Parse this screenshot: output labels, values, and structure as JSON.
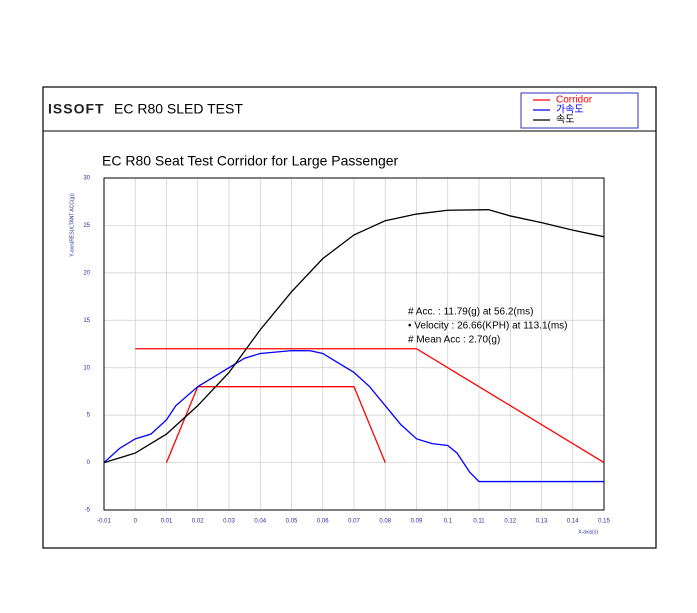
{
  "header": {
    "logo": "ISSOFT",
    "title": "EC R80 SLED TEST"
  },
  "chart_data": {
    "type": "line",
    "title": "EC R80 Seat Test Corridor for Large Passenger",
    "y_label": "Y-axis(RESULTANT ACC(g))",
    "x_label": "X-axis(s)",
    "annotations": [
      "# Acc. : 11.79(g) at 56.2(ms)",
      "• Velocity : 26.66(KPH) at 113.1(ms)",
      "# Mean Acc : 2.70(g)"
    ],
    "xlim": [
      -0.01,
      0.15
    ],
    "xticks": [
      -0.01,
      0,
      0.01,
      0.02,
      0.03,
      0.04,
      0.05,
      0.06,
      0.07,
      0.08,
      0.09,
      0.1,
      0.11,
      0.12,
      0.13,
      0.14,
      0.15
    ],
    "ylim": [
      -5,
      30
    ],
    "yticks": [
      -5,
      0,
      5,
      10,
      15,
      20,
      25,
      30
    ],
    "grid": true,
    "legend": "top-right",
    "series": [
      {
        "name": "Corridor",
        "color": "#ff0000",
        "x": [
          0,
          0.09,
          0.15,
          null,
          0.01,
          0.02,
          0.07,
          0.08
        ],
        "values": [
          12,
          12,
          0,
          null,
          0,
          8,
          8,
          0
        ]
      },
      {
        "name": "가속도",
        "color": "#0000ff",
        "x": [
          -0.01,
          -0.005,
          0,
          0.005,
          0.01,
          0.013,
          0.02,
          0.025,
          0.03,
          0.035,
          0.04,
          0.05,
          0.056,
          0.06,
          0.065,
          0.07,
          0.075,
          0.08,
          0.085,
          0.09,
          0.095,
          0.1,
          0.103,
          0.107,
          0.11,
          0.12,
          0.13,
          0.14,
          0.15
        ],
        "values": [
          0,
          1.5,
          2.5,
          3,
          4.5,
          6,
          8,
          9,
          10,
          11,
          11.5,
          11.8,
          11.79,
          11.5,
          10.5,
          9.5,
          8,
          6,
          4,
          2.5,
          2,
          1.8,
          1,
          -1,
          -2,
          -2,
          -2,
          -2,
          -2
        ]
      },
      {
        "name": "속도",
        "color": "#000000",
        "x": [
          -0.01,
          0,
          0.01,
          0.02,
          0.03,
          0.04,
          0.05,
          0.06,
          0.07,
          0.08,
          0.09,
          0.1,
          0.113,
          0.12,
          0.13,
          0.14,
          0.15
        ],
        "values": [
          0,
          1,
          3,
          6,
          9.5,
          14,
          18,
          21.5,
          24,
          25.5,
          26.2,
          26.6,
          26.66,
          26,
          25.3,
          24.5,
          23.8
        ]
      }
    ]
  }
}
